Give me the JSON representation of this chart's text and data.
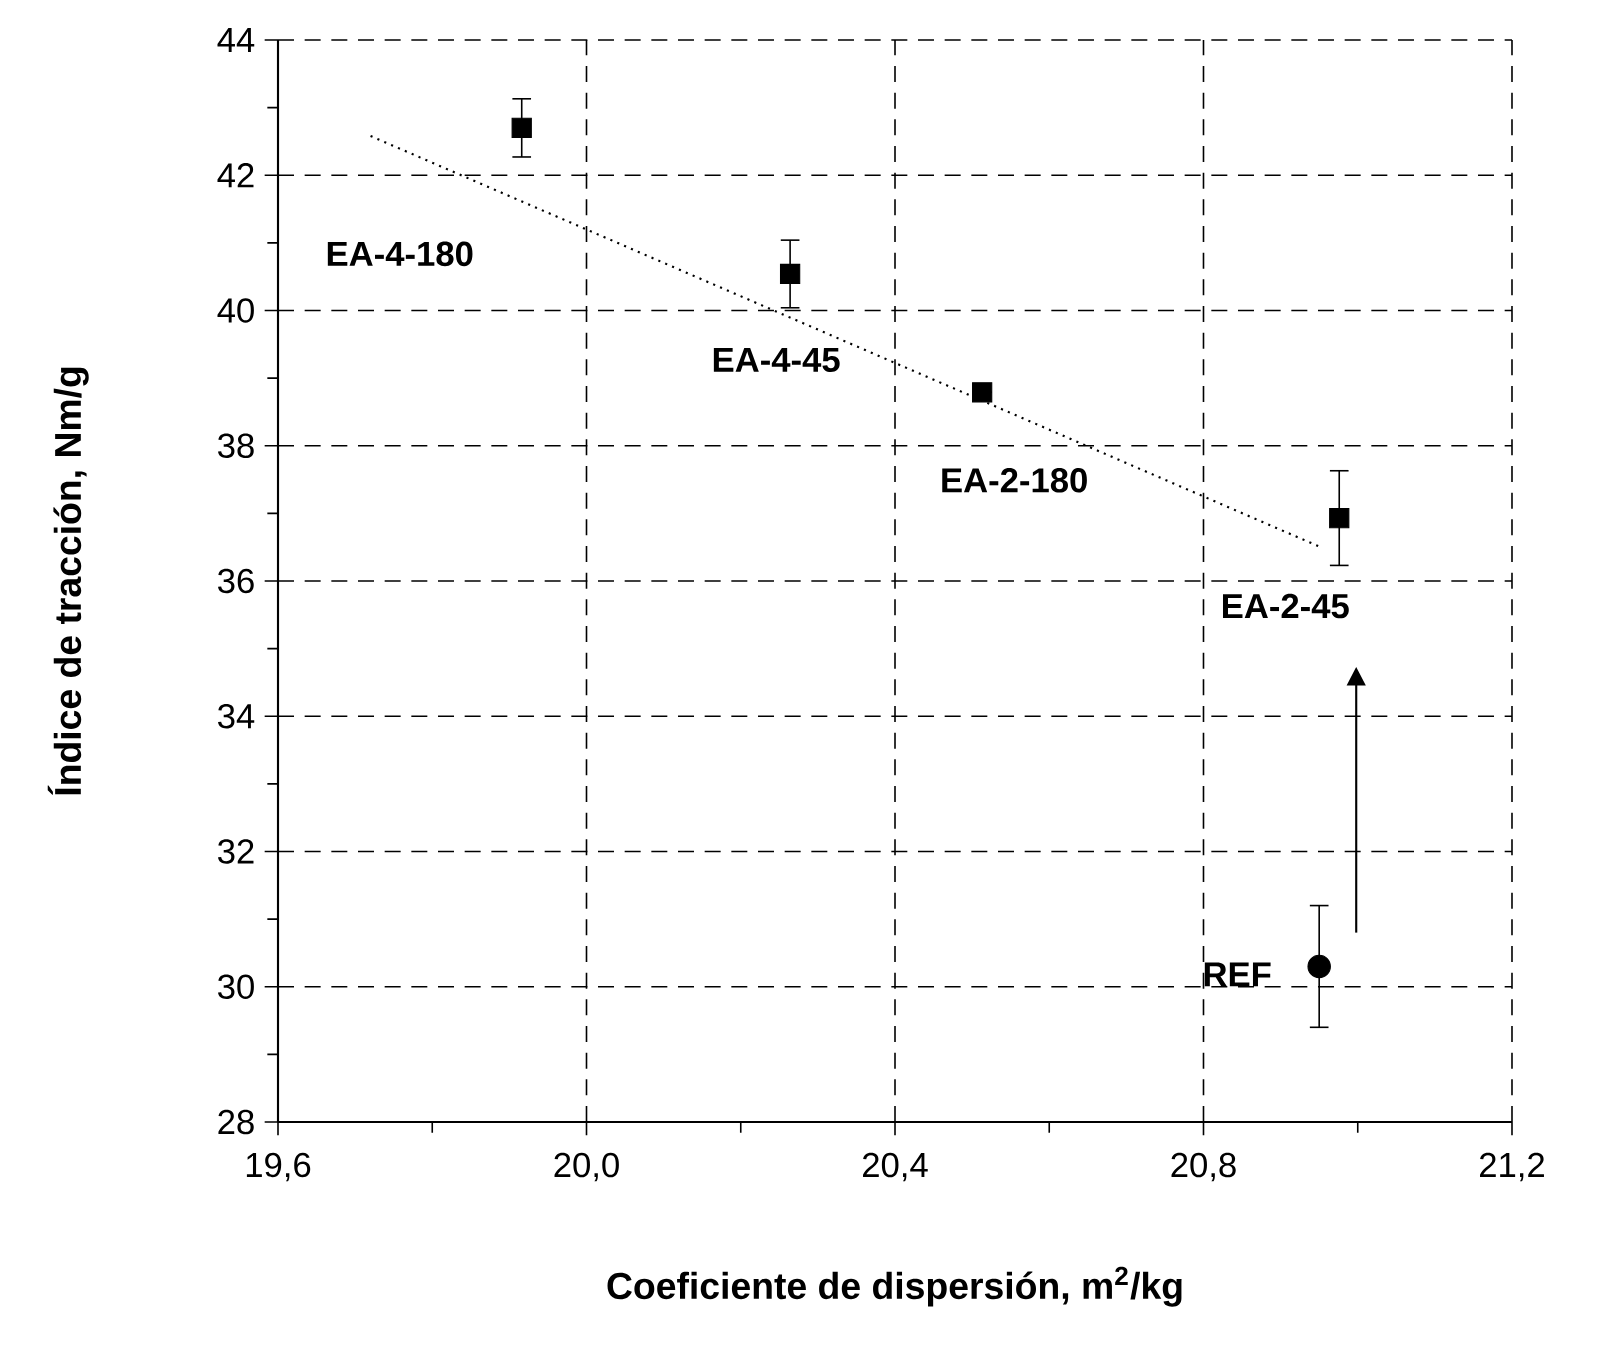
{
  "chart_data": {
    "type": "scatter",
    "xlabel": "Coeficiente de dispersión, m$^{2}$/kg",
    "ylabel": "Índice de tracción, Nm/g",
    "xlim": [
      19.6,
      21.2
    ],
    "ylim": [
      28,
      44
    ],
    "xticks": [
      {
        "value": 19.6,
        "label": "19,6"
      },
      {
        "value": 20.0,
        "label": "20,0"
      },
      {
        "value": 20.4,
        "label": "20,4"
      },
      {
        "value": 20.8,
        "label": "20,8"
      },
      {
        "value": 21.2,
        "label": "21,2"
      }
    ],
    "yticks": [
      28,
      30,
      32,
      34,
      36,
      38,
      40,
      42,
      44
    ],
    "grid": true,
    "series": [
      {
        "marker": "square",
        "color": "#000000",
        "x": [
          19.916,
          20.264,
          20.513,
          20.976
        ],
        "values": [
          42.7,
          40.54,
          38.79,
          36.93
        ],
        "errors": [
          0.43,
          0.5,
          null,
          0.7
        ]
      },
      {
        "marker": "circle",
        "color": "#000000",
        "x": [
          20.95
        ],
        "values": [
          30.3
        ],
        "errors": [
          0.9
        ]
      },
      {
        "type": "line",
        "marker": "none",
        "line_style": "dotted",
        "color": "#000000",
        "x": [
          19.72,
          20.95
        ],
        "values": [
          42.58,
          36.51
        ]
      }
    ],
    "annotations": [
      "EA-4-180",
      {
        "text": "EA-4-45",
        "x": 20.264,
        "y": 40.54
      },
      {
        "text": "EA-2-180",
        "x": 20.513,
        "y": 38.79
      },
      {
        "text": "EA-2-45",
        "x": 20.976,
        "y": 36.93
      },
      {
        "text": "REF",
        "x": 20.95,
        "y": 30.3
      }
    ]
  }
}
